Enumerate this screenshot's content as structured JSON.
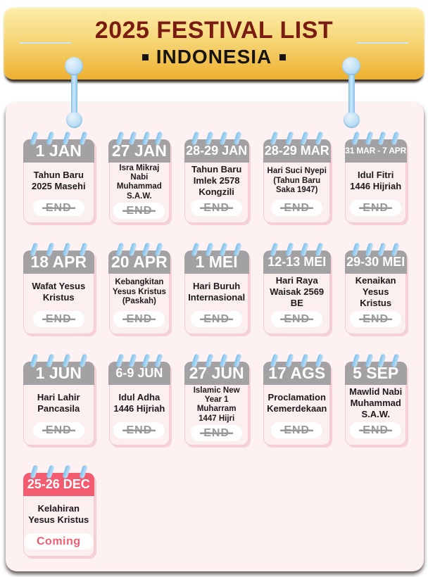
{
  "header": {
    "title": "2025 FESTIVAL LIST",
    "subtitle": "INDONESIA"
  },
  "festivals": [
    {
      "date": "1 JAN",
      "name": "Tahun Baru 2025 Masehi",
      "status": "END"
    },
    {
      "date": "27 JAN",
      "name": "Isra Mikraj Nabi Muhammad S.A.W.",
      "status": "END"
    },
    {
      "date": "28-29 JAN",
      "name": "Tahun Baru Imlek 2578 Kongzili",
      "status": "END"
    },
    {
      "date": "28-29 MAR",
      "name": "Hari Suci Nyepi (Tahun Baru Saka 1947)",
      "status": "END"
    },
    {
      "date": "31 MAR - 7 APR",
      "name": "Idul Fitri 1446 Hijriah",
      "status": "END"
    },
    {
      "date": "18 APR",
      "name": "Wafat Yesus Kristus",
      "status": "END"
    },
    {
      "date": "20 APR",
      "name": "Kebangkitan Yesus Kristus (Paskah)",
      "status": "END"
    },
    {
      "date": "1 MEI",
      "name": "Hari Buruh Internasional",
      "status": "END"
    },
    {
      "date": "12-13 MEI",
      "name": "Hari Raya Waisak 2569 BE",
      "status": "END"
    },
    {
      "date": "29-30 MEI",
      "name": "Kenaikan Yesus Kristus",
      "status": "END"
    },
    {
      "date": "1 JUN",
      "name": "Hari Lahir Pancasila",
      "status": "END"
    },
    {
      "date": "6-9 JUN",
      "name": "Idul Adha 1446 Hijriah",
      "status": "END"
    },
    {
      "date": "27 JUN",
      "name": "Islamic New Year 1 Muharram 1447 Hijri",
      "status": "END"
    },
    {
      "date": "17 AGS",
      "name": "Proclamation Kemerdekaan",
      "status": "END"
    },
    {
      "date": "5 SEP",
      "name": "Mawlid Nabi Muhammad S.A.W.",
      "status": "END"
    },
    {
      "date": "25-26 DEC",
      "name": "Kelahiran Yesus Kristus",
      "status": "Coming"
    }
  ],
  "colors": {
    "banner_gradient_top": "#fcecaa",
    "banner_gradient_bottom": "#edb02f",
    "title_text": "#7b1c12",
    "subtitle_text": "#161310",
    "panel_background": "#fdf2f1",
    "card_background": "#fceff0",
    "card_border": "#f3ccd2",
    "date_header_gray": "#a3a1a3",
    "date_header_pink": "#f25b70",
    "binder_ring_blue": "#7fc0ea",
    "end_text": "#9a989b",
    "coming_text": "#f25b70"
  }
}
